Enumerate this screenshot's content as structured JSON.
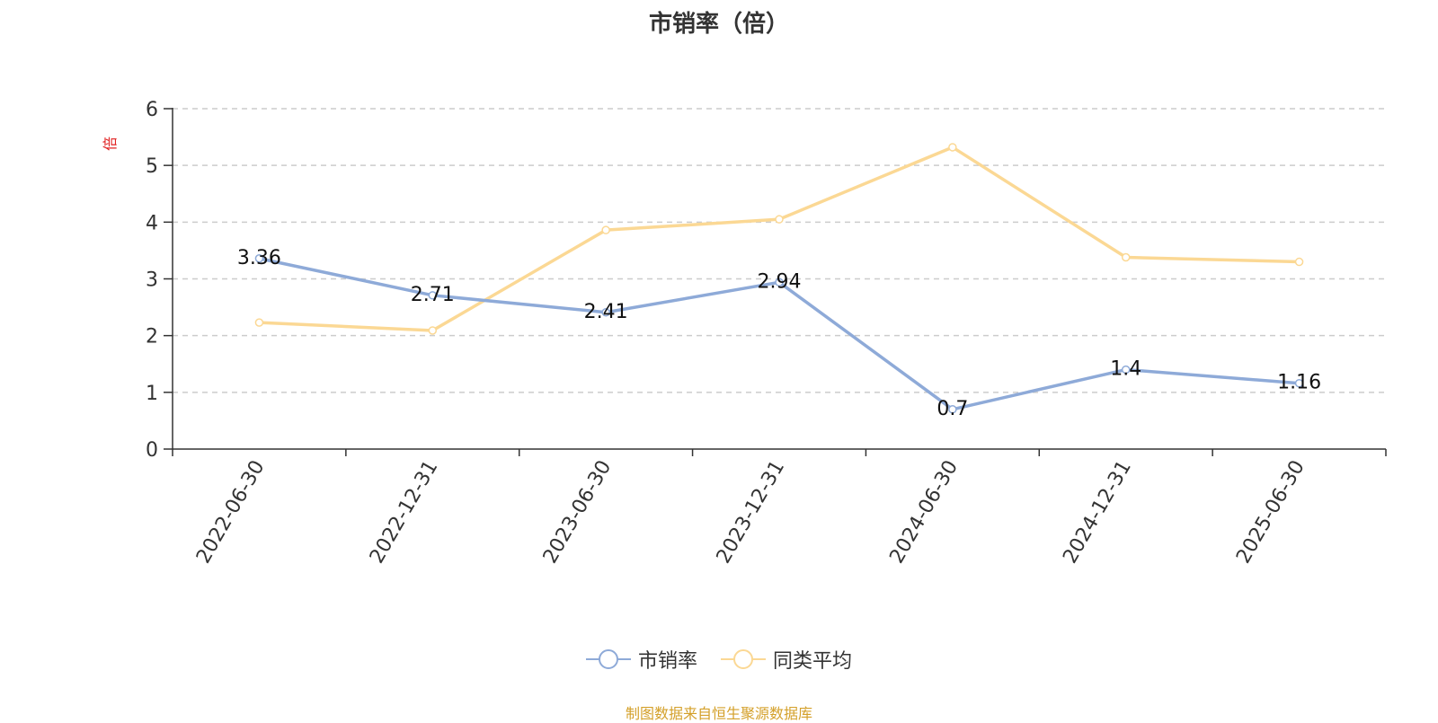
{
  "chart_data": {
    "type": "line",
    "title": "市销率（倍）",
    "ylabel": "倍",
    "xlabel": "",
    "categories": [
      "2022-06-30",
      "2022-12-31",
      "2023-06-30",
      "2023-12-31",
      "2024-06-30",
      "2024-12-31",
      "2025-06-30"
    ],
    "ylim": [
      0,
      6
    ],
    "yticks": [
      "0",
      "1",
      "2",
      "3",
      "4",
      "5",
      "6"
    ],
    "grid": true,
    "legend_position": "bottom-center",
    "series": [
      {
        "name": "市销率",
        "color": "#8eaad8",
        "values": [
          3.36,
          2.71,
          2.41,
          2.94,
          0.7,
          1.4,
          1.16
        ],
        "labels": [
          "3.36",
          "2.71",
          "2.41",
          "2.94",
          "0.7",
          "1.4",
          "1.16"
        ]
      },
      {
        "name": "同类平均",
        "color": "#fbd894",
        "values": [
          2.23,
          2.09,
          3.86,
          4.05,
          5.32,
          3.38,
          3.3
        ]
      }
    ]
  },
  "source_note": "制图数据来自恒生聚源数据库",
  "colors": {
    "axis": "#333333",
    "grid": "#cccccc",
    "ylabel": "#e02020",
    "source": "#d4a02a"
  }
}
